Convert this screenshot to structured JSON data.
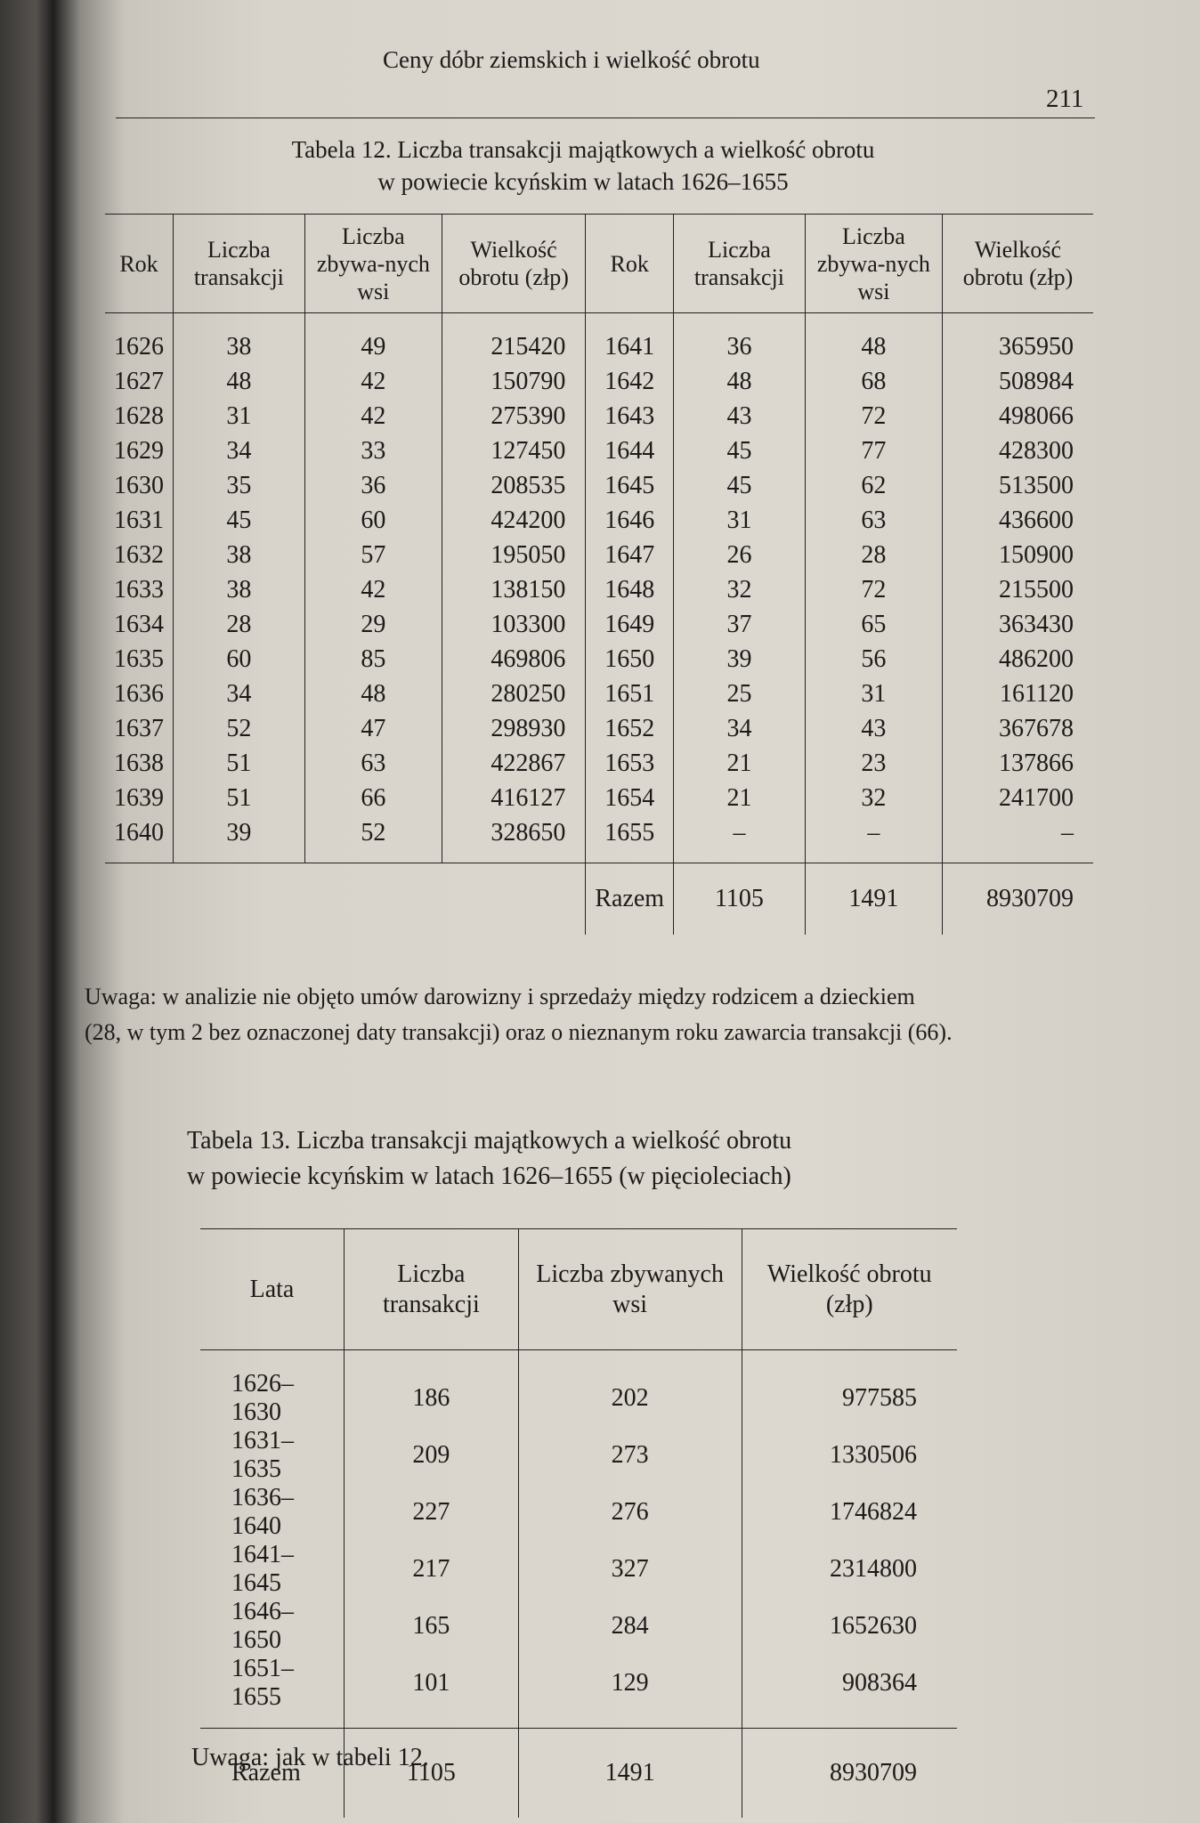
{
  "running_head": "Ceny dóbr ziemskich i wielkość obrotu",
  "page_number": "211",
  "table12": {
    "title_line1": "Tabela 12. Liczba transakcji majątkowych a wielkość obrotu",
    "title_line2": "w powiecie kcyńskim w latach 1626–1655",
    "headers": [
      "Rok",
      "Liczba transakcji",
      "Liczba zbywa-nych wsi",
      "Wielkość obrotu (złp)",
      "Rok",
      "Liczba transakcji",
      "Liczba zbywa-nych wsi",
      "Wielkość obrotu (złp)"
    ],
    "rows": [
      [
        "1626",
        "38",
        "49",
        "215420",
        "1641",
        "36",
        "48",
        "365950"
      ],
      [
        "1627",
        "48",
        "42",
        "150790",
        "1642",
        "48",
        "68",
        "508984"
      ],
      [
        "1628",
        "31",
        "42",
        "275390",
        "1643",
        "43",
        "72",
        "498066"
      ],
      [
        "1629",
        "34",
        "33",
        "127450",
        "1644",
        "45",
        "77",
        "428300"
      ],
      [
        "1630",
        "35",
        "36",
        "208535",
        "1645",
        "45",
        "62",
        "513500"
      ],
      [
        "1631",
        "45",
        "60",
        "424200",
        "1646",
        "31",
        "63",
        "436600"
      ],
      [
        "1632",
        "38",
        "57",
        "195050",
        "1647",
        "26",
        "28",
        "150900"
      ],
      [
        "1633",
        "38",
        "42",
        "138150",
        "1648",
        "32",
        "72",
        "215500"
      ],
      [
        "1634",
        "28",
        "29",
        "103300",
        "1649",
        "37",
        "65",
        "363430"
      ],
      [
        "1635",
        "60",
        "85",
        "469806",
        "1650",
        "39",
        "56",
        "486200"
      ],
      [
        "1636",
        "34",
        "48",
        "280250",
        "1651",
        "25",
        "31",
        "161120"
      ],
      [
        "1637",
        "52",
        "47",
        "298930",
        "1652",
        "34",
        "43",
        "367678"
      ],
      [
        "1638",
        "51",
        "63",
        "422867",
        "1653",
        "21",
        "23",
        "137866"
      ],
      [
        "1639",
        "51",
        "66",
        "416127",
        "1654",
        "21",
        "32",
        "241700"
      ],
      [
        "1640",
        "39",
        "52",
        "328650",
        "1655",
        "–",
        "–",
        "–"
      ]
    ],
    "total": {
      "label": "Razem",
      "transakcji": "1105",
      "wsi": "1491",
      "obrot": "8930709"
    },
    "note_line1": "Uwaga: w analizie nie objęto umów darowizny i sprzedaży między rodzicem a dzieckiem",
    "note_line2": "(28, w tym 2 bez oznaczonej daty transakcji) oraz o nieznanym roku zawarcia transakcji (66)."
  },
  "table13": {
    "title_line1": "Tabela 13. Liczba transakcji majątkowych a wielkość obrotu",
    "title_line2": "w powiecie kcyńskim w latach 1626–1655 (w pięcioleciach)",
    "headers": [
      "Lata",
      "Liczba transakcji",
      "Liczba zbywanych wsi",
      "Wielkość obrotu (złp)"
    ],
    "rows": [
      [
        "1626–1630",
        "186",
        "202",
        "977585"
      ],
      [
        "1631–1635",
        "209",
        "273",
        "1330506"
      ],
      [
        "1636–1640",
        "227",
        "276",
        "1746824"
      ],
      [
        "1641–1645",
        "217",
        "327",
        "2314800"
      ],
      [
        "1646–1650",
        "165",
        "284",
        "1652630"
      ],
      [
        "1651–1655",
        "101",
        "129",
        "908364"
      ]
    ],
    "total": {
      "label": "Razem",
      "transakcji": "1105",
      "wsi": "1491",
      "obrot": "8930709"
    },
    "note": "Uwaga: jak w tabeli 12."
  }
}
